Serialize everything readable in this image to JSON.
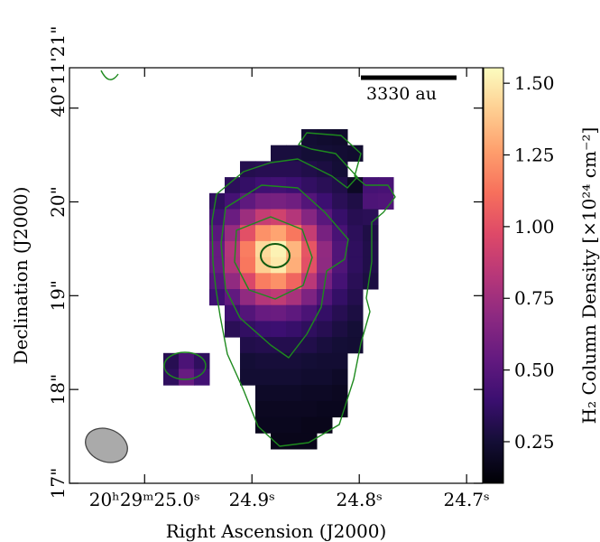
{
  "chart_data": {
    "type": "heatmap",
    "xlabel": "Right Ascension (J2000)",
    "ylabel": "Declination (J2000)",
    "colorbar_label": "H₂ Column Density [×10²⁴ cm⁻²]",
    "scalebar_label": "3330 au",
    "colormap": "magma",
    "xlim": [
      25.07,
      24.685
    ],
    "xticks": [
      {
        "value": 25.0,
        "label": "20ʰ29ᵐ25.0ˢ"
      },
      {
        "value": 24.9,
        "label": "24.9ˢ"
      },
      {
        "value": 24.8,
        "label": "24.8ˢ"
      },
      {
        "value": 24.7,
        "label": "24.7ˢ"
      }
    ],
    "ylim": [
      17.0,
      21.43
    ],
    "yticks": [
      {
        "value": 17,
        "label": "17\""
      },
      {
        "value": 18,
        "label": "18\""
      },
      {
        "value": 19,
        "label": "19\""
      },
      {
        "value": 20,
        "label": "20\""
      },
      {
        "value": 21,
        "label": "40°11'21\""
      }
    ],
    "zlim": [
      0.105,
      1.554
    ],
    "zticks": [
      0.25,
      {
        "value": 0.5,
        "label": "0.50"
      },
      0.75,
      {
        "value": 1.0,
        "label": "1.00"
      },
      1.25,
      {
        "value": 1.5,
        "label": "1.50"
      }
    ],
    "z": [
      [
        null,
        null,
        null,
        null,
        null,
        null,
        null,
        null,
        null,
        0.24,
        0.23,
        0.22,
        null,
        null,
        null
      ],
      [
        null,
        null,
        null,
        null,
        null,
        null,
        null,
        0.27,
        0.27,
        0.25,
        0.25,
        0.24,
        0.23,
        null,
        null
      ],
      [
        null,
        null,
        null,
        null,
        null,
        0.31,
        0.32,
        0.32,
        0.32,
        0.3,
        0.28,
        0.25,
        null,
        null,
        null
      ],
      [
        null,
        null,
        null,
        null,
        0.34,
        0.37,
        0.41,
        0.42,
        0.4,
        0.36,
        0.33,
        0.3,
        0.2,
        0.43,
        0.44
      ],
      [
        null,
        null,
        null,
        0.35,
        0.43,
        0.52,
        0.6,
        0.61,
        0.58,
        0.48,
        0.4,
        0.33,
        0.29,
        0.46,
        0.47
      ],
      [
        null,
        null,
        null,
        0.42,
        0.56,
        0.74,
        0.88,
        0.92,
        0.82,
        0.66,
        0.5,
        0.38,
        0.32,
        0.33,
        null
      ],
      [
        null,
        null,
        null,
        0.5,
        0.72,
        1.0,
        1.22,
        1.28,
        1.14,
        0.88,
        0.61,
        0.44,
        0.34,
        0.29,
        null
      ],
      [
        null,
        null,
        null,
        0.55,
        0.82,
        1.16,
        1.44,
        1.52,
        1.33,
        1.02,
        0.7,
        0.47,
        0.35,
        0.3,
        null
      ],
      [
        null,
        null,
        null,
        0.55,
        0.81,
        1.14,
        1.41,
        1.49,
        1.31,
        1.0,
        0.69,
        0.47,
        0.35,
        0.3,
        null
      ],
      [
        null,
        null,
        null,
        0.49,
        0.7,
        0.96,
        1.16,
        1.22,
        1.08,
        0.84,
        0.6,
        0.43,
        0.33,
        0.28,
        null
      ],
      [
        null,
        null,
        null,
        0.41,
        0.53,
        0.7,
        0.82,
        0.86,
        0.78,
        0.63,
        0.48,
        0.37,
        0.31,
        null,
        null
      ],
      [
        null,
        null,
        null,
        null,
        0.41,
        0.48,
        0.55,
        0.56,
        0.52,
        0.45,
        0.37,
        0.32,
        0.28,
        null,
        null
      ],
      [
        null,
        null,
        null,
        null,
        0.33,
        0.36,
        0.39,
        0.4,
        0.38,
        0.35,
        0.32,
        0.28,
        0.25,
        null,
        null
      ],
      [
        null,
        null,
        null,
        null,
        null,
        0.3,
        0.31,
        0.31,
        0.31,
        0.3,
        0.27,
        0.25,
        0.24,
        null,
        null
      ],
      [
        0.32,
        0.45,
        0.35,
        null,
        null,
        0.25,
        0.26,
        0.26,
        0.26,
        0.25,
        0.24,
        0.24,
        null,
        null,
        null
      ],
      [
        0.35,
        0.55,
        0.42,
        null,
        null,
        0.24,
        0.24,
        0.24,
        0.24,
        0.23,
        0.23,
        0.21,
        null,
        null,
        null
      ],
      [
        null,
        null,
        null,
        null,
        null,
        null,
        0.21,
        0.21,
        0.21,
        0.2,
        0.2,
        0.19,
        null,
        null,
        null
      ],
      [
        null,
        null,
        null,
        null,
        null,
        null,
        0.19,
        0.19,
        0.19,
        0.19,
        0.18,
        0.18,
        null,
        null,
        null
      ],
      [
        null,
        null,
        null,
        null,
        null,
        null,
        0.18,
        0.18,
        0.18,
        0.17,
        0.17,
        null,
        null,
        null,
        null
      ],
      [
        null,
        null,
        null,
        null,
        null,
        null,
        null,
        0.17,
        0.17,
        0.17,
        null,
        null,
        null,
        null,
        null
      ]
    ]
  }
}
